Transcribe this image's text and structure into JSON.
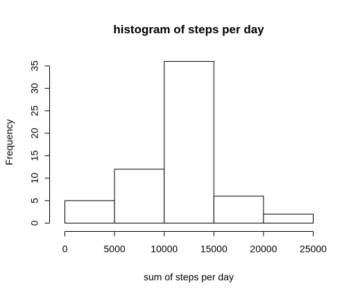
{
  "chart_data": {
    "type": "bar",
    "title": "histogram of steps per day",
    "xlabel": "sum of steps per day",
    "ylabel": "Frequency",
    "bins": [
      {
        "from": 0,
        "to": 5000,
        "count": 5
      },
      {
        "from": 5000,
        "to": 10000,
        "count": 12
      },
      {
        "from": 10000,
        "to": 15000,
        "count": 36
      },
      {
        "from": 15000,
        "to": 20000,
        "count": 6
      },
      {
        "from": 20000,
        "to": 25000,
        "count": 2
      }
    ],
    "x_ticks": [
      0,
      5000,
      10000,
      15000,
      20000,
      25000
    ],
    "y_ticks": [
      0,
      5,
      10,
      15,
      20,
      25,
      30,
      35
    ],
    "xlim": [
      0,
      25000
    ],
    "ylim": [
      0,
      36
    ],
    "grid": false,
    "legend": "none",
    "bar_fill": "#ffffff",
    "bar_stroke": "#000000"
  }
}
